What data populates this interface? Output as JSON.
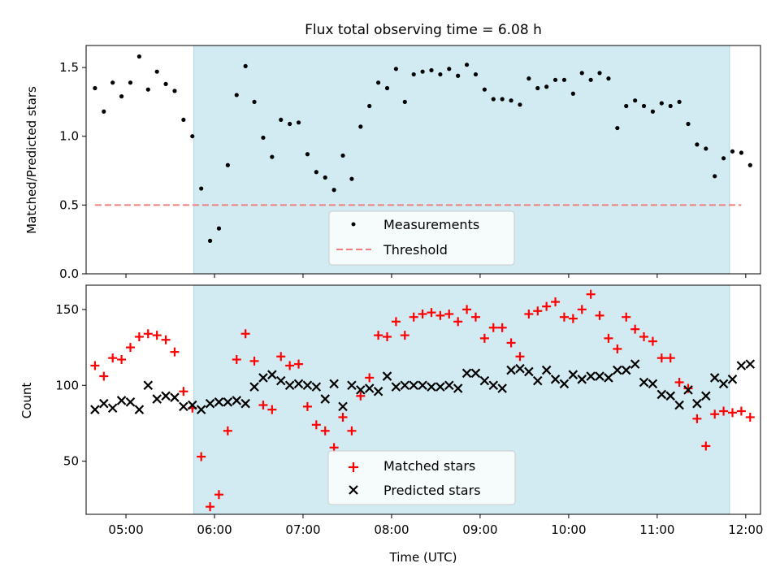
{
  "chart_data": [
    {
      "type": "scatter",
      "title": "Flux total observing time = 6.08 h",
      "ylabel": "Matched/Predicted stars",
      "xlabel": "",
      "xlim": [
        "04:33",
        "12:10"
      ],
      "ylim": [
        0.0,
        1.66
      ],
      "yticks": [
        {
          "v": 0.0,
          "label": "0.0"
        },
        {
          "v": 0.5,
          "label": "0.5"
        },
        {
          "v": 1.0,
          "label": "1.0"
        },
        {
          "v": 1.5,
          "label": "1.5"
        }
      ],
      "shaded_window": [
        "05:46",
        "11:49"
      ],
      "legend_position": "lower center",
      "series": [
        {
          "name": "Measurements",
          "marker": "dot",
          "color": "#000000",
          "x": [
            "04:39",
            "04:45",
            "04:51",
            "04:57",
            "05:03",
            "05:09",
            "05:15",
            "05:21",
            "05:27",
            "05:33",
            "05:39",
            "05:45",
            "05:51",
            "05:57",
            "06:03",
            "06:09",
            "06:15",
            "06:21",
            "06:27",
            "06:33",
            "06:39",
            "06:45",
            "06:51",
            "06:57",
            "07:03",
            "07:09",
            "07:15",
            "07:21",
            "07:27",
            "07:33",
            "07:39",
            "07:45",
            "07:51",
            "07:57",
            "08:03",
            "08:09",
            "08:15",
            "08:21",
            "08:27",
            "08:33",
            "08:39",
            "08:45",
            "08:51",
            "08:57",
            "09:03",
            "09:09",
            "09:15",
            "09:21",
            "09:27",
            "09:33",
            "09:39",
            "09:45",
            "09:51",
            "09:57",
            "10:03",
            "10:09",
            "10:15",
            "10:21",
            "10:27",
            "10:33",
            "10:39",
            "10:45",
            "10:51",
            "10:57",
            "11:03",
            "11:09",
            "11:15",
            "11:21",
            "11:27",
            "11:33",
            "11:39",
            "11:45",
            "11:51",
            "11:57",
            "12:03"
          ],
          "y": [
            1.35,
            1.18,
            1.39,
            1.29,
            1.39,
            1.58,
            1.34,
            1.47,
            1.38,
            1.33,
            1.12,
            1.0,
            0.62,
            0.24,
            0.33,
            0.79,
            1.3,
            1.51,
            1.25,
            0.99,
            0.85,
            1.12,
            1.09,
            1.1,
            0.87,
            0.74,
            0.7,
            0.61,
            0.86,
            0.69,
            1.07,
            1.22,
            1.39,
            1.35,
            1.49,
            1.25,
            1.45,
            1.47,
            1.48,
            1.45,
            1.49,
            1.44,
            1.52,
            1.45,
            1.34,
            1.27,
            1.27,
            1.26,
            1.23,
            1.42,
            1.35,
            1.36,
            1.41,
            1.41,
            1.31,
            1.46,
            1.41,
            1.46,
            1.42,
            1.06,
            1.22,
            1.26,
            1.22,
            1.18,
            1.24,
            1.22,
            1.25,
            1.09,
            0.94,
            0.91,
            0.71,
            0.84,
            0.89,
            0.88,
            0.79
          ]
        },
        {
          "name": "Threshold",
          "style": "dashed",
          "color": "#f08080",
          "x": [
            "04:33",
            "12:10"
          ],
          "y": [
            0.5,
            0.5
          ]
        }
      ]
    },
    {
      "type": "scatter",
      "title": "",
      "ylabel": "Count",
      "xlabel": "Time (UTC)",
      "xlim": [
        "04:33",
        "12:10"
      ],
      "ylim": [
        15,
        166
      ],
      "yticks": [
        {
          "v": 50,
          "label": "50"
        },
        {
          "v": 100,
          "label": "100"
        },
        {
          "v": 150,
          "label": "150"
        }
      ],
      "xticks": [
        "05:00",
        "06:00",
        "07:00",
        "08:00",
        "09:00",
        "10:00",
        "11:00",
        "12:00"
      ],
      "shaded_window": [
        "05:46",
        "11:49"
      ],
      "legend_position": "lower center",
      "series": [
        {
          "name": "Matched stars",
          "marker": "plus",
          "color": "#ff0000",
          "x": [
            "04:39",
            "04:45",
            "04:51",
            "04:57",
            "05:03",
            "05:09",
            "05:15",
            "05:21",
            "05:27",
            "05:33",
            "05:39",
            "05:45",
            "05:51",
            "05:57",
            "06:03",
            "06:09",
            "06:15",
            "06:21",
            "06:27",
            "06:33",
            "06:39",
            "06:45",
            "06:51",
            "06:57",
            "07:03",
            "07:09",
            "07:15",
            "07:21",
            "07:27",
            "07:33",
            "07:39",
            "07:45",
            "07:51",
            "07:57",
            "08:03",
            "08:09",
            "08:15",
            "08:21",
            "08:27",
            "08:33",
            "08:39",
            "08:45",
            "08:51",
            "08:57",
            "09:03",
            "09:09",
            "09:15",
            "09:21",
            "09:27",
            "09:33",
            "09:39",
            "09:45",
            "09:51",
            "09:57",
            "10:03",
            "10:09",
            "10:15",
            "10:21",
            "10:27",
            "10:33",
            "10:39",
            "10:45",
            "10:51",
            "10:57",
            "11:03",
            "11:09",
            "11:15",
            "11:21",
            "11:27",
            "11:33",
            "11:39",
            "11:45",
            "11:51",
            "11:57",
            "12:03"
          ],
          "y": [
            113,
            106,
            118,
            117,
            125,
            132,
            134,
            133,
            130,
            122,
            96,
            85,
            53,
            20,
            28,
            70,
            117,
            134,
            116,
            87,
            84,
            119,
            113,
            114,
            86,
            74,
            70,
            59,
            79,
            70,
            93,
            105,
            133,
            132,
            142,
            133,
            145,
            147,
            148,
            146,
            147,
            142,
            150,
            145,
            131,
            138,
            138,
            128,
            119,
            147,
            149,
            152,
            155,
            145,
            144,
            150,
            160,
            146,
            131,
            124,
            145,
            137,
            132,
            129,
            118,
            118,
            102,
            98,
            78,
            60,
            81,
            83,
            82,
            83,
            79
          ]
        },
        {
          "name": "Predicted stars",
          "marker": "cross",
          "color": "#000000",
          "x": [
            "04:39",
            "04:45",
            "04:51",
            "04:57",
            "05:03",
            "05:09",
            "05:15",
            "05:21",
            "05:27",
            "05:33",
            "05:39",
            "05:45",
            "05:51",
            "05:57",
            "06:03",
            "06:09",
            "06:15",
            "06:21",
            "06:27",
            "06:33",
            "06:39",
            "06:45",
            "06:51",
            "06:57",
            "07:03",
            "07:09",
            "07:15",
            "07:21",
            "07:27",
            "07:33",
            "07:39",
            "07:45",
            "07:51",
            "07:57",
            "08:03",
            "08:09",
            "08:15",
            "08:21",
            "08:27",
            "08:33",
            "08:39",
            "08:45",
            "08:51",
            "08:57",
            "09:03",
            "09:09",
            "09:15",
            "09:21",
            "09:27",
            "09:33",
            "09:39",
            "09:45",
            "09:51",
            "09:57",
            "10:03",
            "10:09",
            "10:15",
            "10:21",
            "10:27",
            "10:33",
            "10:39",
            "10:45",
            "10:51",
            "10:57",
            "11:03",
            "11:09",
            "11:15",
            "11:21",
            "11:27",
            "11:33",
            "11:39",
            "11:45",
            "11:51",
            "11:57",
            "12:03"
          ],
          "y": [
            84,
            88,
            85,
            90,
            89,
            84,
            100,
            91,
            93,
            92,
            86,
            87,
            84,
            88,
            89,
            89,
            90,
            88,
            99,
            105,
            107,
            103,
            100,
            101,
            100,
            99,
            91,
            101,
            86,
            100,
            97,
            98,
            96,
            106,
            99,
            100,
            100,
            100,
            99,
            99,
            100,
            98,
            108,
            108,
            103,
            100,
            98,
            110,
            111,
            109,
            103,
            110,
            104,
            101,
            107,
            104,
            106,
            106,
            105,
            110,
            110,
            114,
            102,
            101,
            94,
            93,
            87,
            97,
            88,
            93,
            105,
            101,
            104,
            113,
            114
          ]
        }
      ]
    }
  ]
}
